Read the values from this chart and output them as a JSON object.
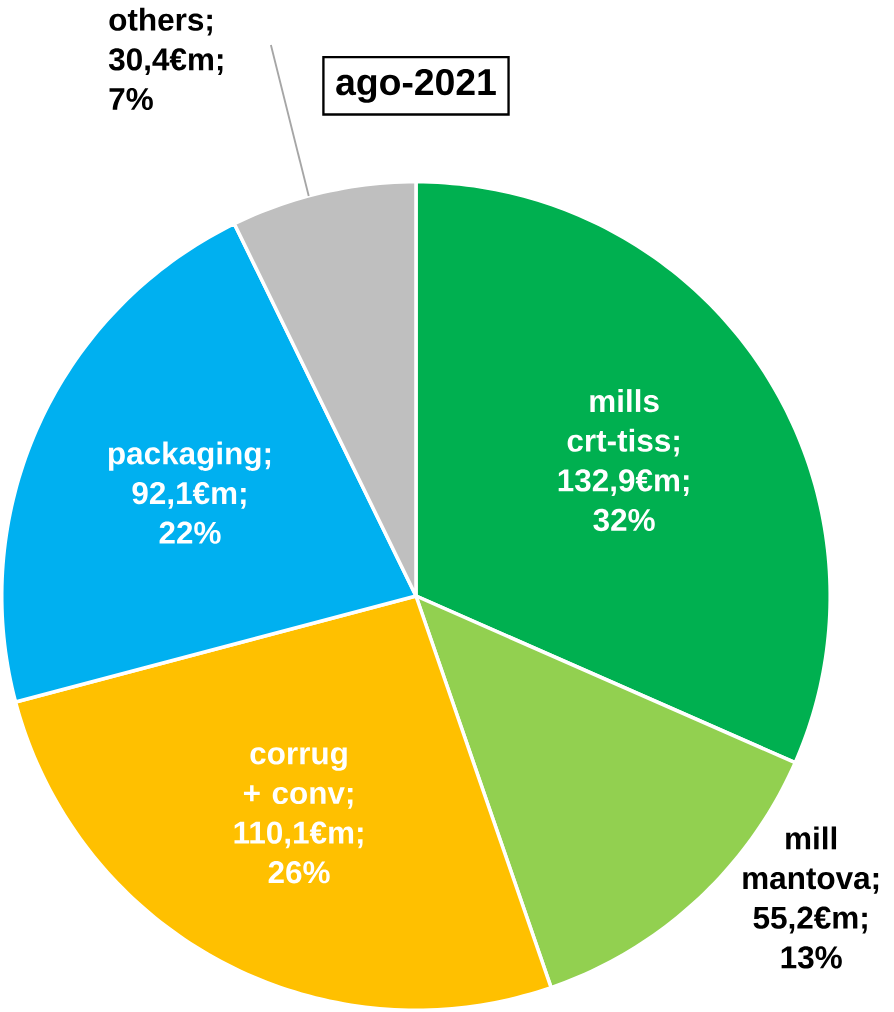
{
  "chart_data": {
    "type": "pie",
    "title": "ago-2021",
    "categories": [
      "mills crt-tiss; 132,9€m; 32%",
      "mill mantova; 55,2€m; 13%",
      "corrug + conv; 110,1€m; 26%",
      "packaging; 92,1€m; 22%",
      "others; 30,4€m; 7%"
    ],
    "values": [
      132.9,
      55.2,
      110.1,
      92.1,
      30.4
    ],
    "colors": [
      "#00b050",
      "#92d050",
      "#ffc000",
      "#00b0f0",
      "#bfbfbf"
    ]
  }
}
